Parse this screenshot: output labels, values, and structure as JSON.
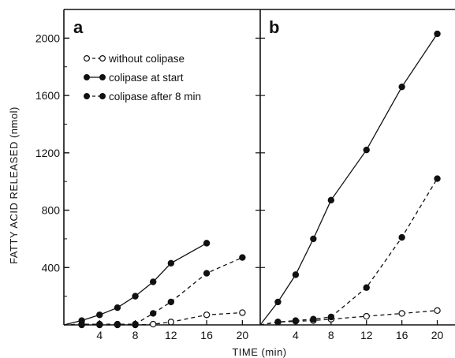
{
  "chart_data": [
    {
      "panel": "a",
      "type": "line",
      "x_tick_labels": [
        "4",
        "8",
        "12",
        "16",
        "20"
      ],
      "y_tick_labels": [
        "400",
        "800",
        "1200",
        "1600",
        "2000"
      ],
      "xlim": [
        0,
        22
      ],
      "ylim": [
        0,
        2200
      ],
      "legend_placement": "top-left",
      "series": [
        {
          "name": "without colipase",
          "marker": "open-circle",
          "line": "dashed",
          "x": [
            2,
            4,
            6,
            8,
            10,
            12,
            16,
            20
          ],
          "y": [
            0,
            0,
            0,
            0,
            5,
            20,
            70,
            85
          ]
        },
        {
          "name": "colipase at start",
          "marker": "filled-circle",
          "line": "solid",
          "x": [
            2,
            4,
            6,
            8,
            10,
            12,
            16
          ],
          "y": [
            30,
            70,
            120,
            200,
            300,
            430,
            570
          ]
        },
        {
          "name": "colipase after 8 min",
          "marker": "filled-circle",
          "line": "dashed",
          "x": [
            2,
            4,
            6,
            8,
            10,
            12,
            16,
            20
          ],
          "y": [
            5,
            5,
            5,
            5,
            80,
            160,
            360,
            470
          ]
        }
      ]
    },
    {
      "panel": "b",
      "type": "line",
      "x_tick_labels": [
        "4",
        "8",
        "12",
        "16",
        "20"
      ],
      "xlim": [
        0,
        22
      ],
      "ylim": [
        0,
        2200
      ],
      "series": [
        {
          "name": "without colipase",
          "marker": "open-circle",
          "line": "dashed",
          "x": [
            2,
            4,
            6,
            8,
            12,
            16,
            20
          ],
          "y": [
            20,
            25,
            30,
            40,
            60,
            80,
            100
          ]
        },
        {
          "name": "colipase at start",
          "marker": "filled-circle",
          "line": "solid",
          "x": [
            2,
            4,
            6,
            8,
            12,
            16,
            20
          ],
          "y": [
            160,
            350,
            600,
            870,
            1220,
            1660,
            2030
          ]
        },
        {
          "name": "colipase after 8 min",
          "marker": "filled-circle",
          "line": "dashed",
          "x": [
            2,
            4,
            6,
            8,
            12,
            16,
            20
          ],
          "y": [
            20,
            30,
            40,
            55,
            260,
            610,
            1020
          ]
        }
      ]
    }
  ],
  "labels": {
    "panel_a": "a",
    "panel_b": "b",
    "y_axis_title": "FATTY ACID RELEASED (nmol)",
    "x_axis_title": "TIME (min)"
  },
  "legend": [
    {
      "label": "without colipase"
    },
    {
      "label": "colipase at start"
    },
    {
      "label": "colipase after 8 min"
    }
  ]
}
